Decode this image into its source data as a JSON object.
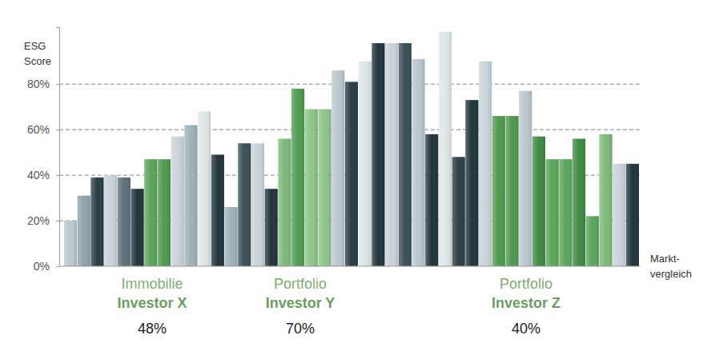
{
  "chart_data": {
    "type": "bar",
    "y_label": "ESG\nScore",
    "x_label": "Markt-\nvergleich",
    "categories": [
      null,
      null,
      null,
      null,
      null,
      null,
      null,
      null,
      null,
      null,
      null,
      null,
      null,
      null,
      null,
      null,
      null,
      null,
      null,
      null,
      null,
      null,
      null,
      null,
      null,
      null,
      null,
      null,
      null,
      null,
      null,
      null,
      null,
      null,
      null,
      null,
      null,
      null,
      null,
      null,
      null,
      null,
      null
    ],
    "values": [
      20,
      31,
      39,
      40,
      39,
      34,
      47,
      47,
      57,
      62,
      68,
      49,
      26,
      54,
      54,
      34,
      56,
      78,
      69,
      69,
      86,
      81,
      90,
      98,
      98,
      98,
      91,
      58,
      103,
      48,
      73,
      90,
      66,
      66,
      77,
      57,
      47,
      47,
      56,
      22,
      58,
      45,
      45
    ],
    "colors": [
      "#b9c6cc",
      "#8fa2aa",
      "#2b3d44",
      "#c9d3d7",
      "#5d7077",
      "#22343c",
      "#5aa55a",
      "#4e9a4e",
      "#c9d3d7",
      "#9fb0b6",
      "#dfe6e8",
      "#22343c",
      "#9fb0b6",
      "#3b4f57",
      "#c9d3d7",
      "#22343c",
      "#7dba7a",
      "#4e9a4e",
      "#8cc48a",
      "#8cc48a",
      "#b9c6cc",
      "#2b3d44",
      "#dfe6e8",
      "#22343c",
      "#c9d3d7",
      "#3b4f57",
      "#b9c6cc",
      "#22343c",
      "#dfe6e8",
      "#2b3d44",
      "#22343c",
      "#c9d3d7",
      "#4e9a4e",
      "#4e9a4e",
      "#b9c6cc",
      "#3f8a44",
      "#5aa55a",
      "#5aa55a",
      "#3f8a44",
      "#5aa55a",
      "#7dba7a",
      "#c9d3d7",
      "#22343c"
    ],
    "ylim": [
      0,
      105
    ],
    "yticks": [
      {
        "value": 0,
        "label": "0%"
      },
      {
        "value": 20,
        "label": "20%"
      },
      {
        "value": 40,
        "label": "40%"
      },
      {
        "value": 60,
        "label": "60%"
      },
      {
        "value": 80,
        "label": "80%"
      }
    ],
    "grid": true,
    "tick_labels": "y",
    "annotations": [
      {
        "title": "Immobilie",
        "name": "Investor X",
        "score": "48%"
      },
      {
        "title": "Portfolio",
        "name": "Investor Y",
        "score": "70%"
      },
      {
        "title": "Portfolio",
        "name": "Investor Z",
        "score": "40%"
      }
    ]
  }
}
